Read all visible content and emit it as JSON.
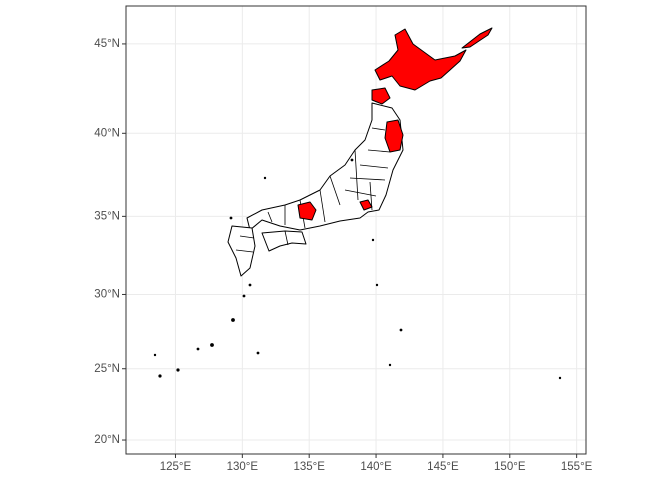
{
  "chart_data": {
    "type": "map",
    "projection": "mercator",
    "xlim": [
      121.3,
      155.7
    ],
    "xticks": [
      {
        "value": 125,
        "label": "125°E"
      },
      {
        "value": 130,
        "label": "130°E"
      },
      {
        "value": 135,
        "label": "135°E"
      },
      {
        "value": 140,
        "label": "140°E"
      },
      {
        "value": 145,
        "label": "145°E"
      },
      {
        "value": 150,
        "label": "150°E"
      },
      {
        "value": 155,
        "label": "155°E"
      }
    ],
    "ylim": [
      19,
      47
    ],
    "yticks": [
      {
        "value": 20,
        "label": "20°N"
      },
      {
        "value": 25,
        "label": "25°N"
      },
      {
        "value": 30,
        "label": "30°N"
      },
      {
        "value": 35,
        "label": "35°N"
      },
      {
        "value": 40,
        "label": "40°N"
      },
      {
        "value": 45,
        "label": "45°N"
      }
    ],
    "grid": true,
    "highlight_color": "#ff0000"
  }
}
